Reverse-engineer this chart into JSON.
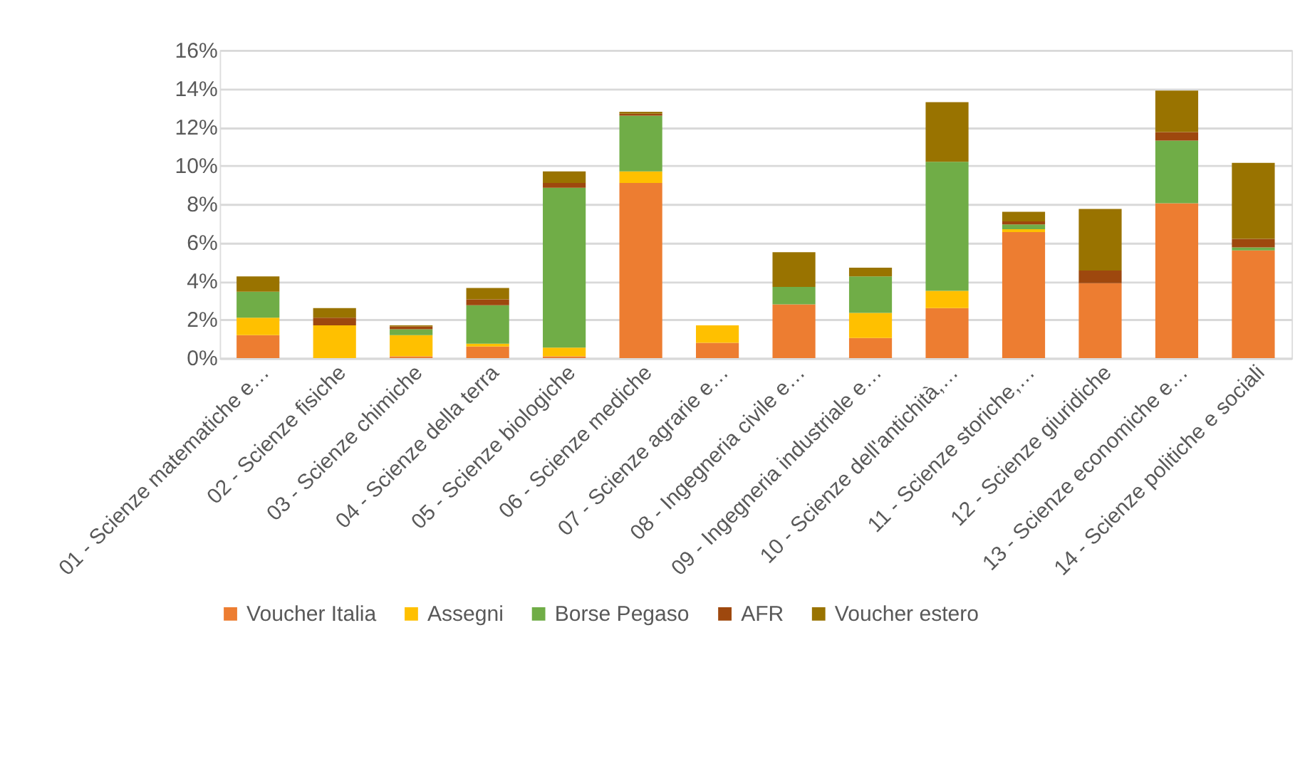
{
  "chart_data": {
    "type": "bar",
    "stacked": true,
    "categories": [
      "01 - Scienze matematiche e…",
      "02 - Scienze fisiche",
      "03 - Scienze chimiche",
      "04 - Scienze della terra",
      "05 - Scienze biologiche",
      "06 - Scienze mediche",
      "07 - Scienze agrarie e…",
      "08 - Ingegneria civile e…",
      "09 - Ingegneria industriale e…",
      "10 - Scienze dell'antichità,…",
      "11 - Scienze storiche,…",
      "12 - Scienze giuridiche",
      "13 - Scienze economiche e…",
      "14 - Scienze politiche e sociali"
    ],
    "series": [
      {
        "name": "Voucher Italia",
        "color": "#ed7d31",
        "values": [
          1.2,
          0,
          0.1,
          0.6,
          0.1,
          9.1,
          0.8,
          2.8,
          1.05,
          2.6,
          6.55,
          3.9,
          8.05,
          5.6
        ]
      },
      {
        "name": "Assegni",
        "color": "#ffc000",
        "values": [
          0.9,
          1.7,
          1.1,
          0.15,
          0.45,
          0.6,
          0.9,
          0,
          1.3,
          0.9,
          0.15,
          0,
          0,
          0
        ]
      },
      {
        "name": "Borse Pegaso",
        "color": "#70ad47",
        "values": [
          1.35,
          0,
          0.3,
          2.0,
          8.3,
          2.9,
          0,
          0.9,
          1.9,
          6.7,
          0.25,
          0,
          3.25,
          0.15
        ]
      },
      {
        "name": "AFR",
        "color": "#9e480e",
        "values": [
          0,
          0.4,
          0.15,
          0.3,
          0.25,
          0.1,
          0,
          0,
          0,
          0,
          0.15,
          0.65,
          0.45,
          0.45
        ]
      },
      {
        "name": "Voucher estero",
        "color": "#997300",
        "values": [
          0.8,
          0.5,
          0.05,
          0.6,
          0.6,
          0.1,
          0,
          1.8,
          0.45,
          3.1,
          0.5,
          3.2,
          2.15,
          3.95
        ]
      }
    ],
    "ylim": [
      0,
      16
    ],
    "yticks": [
      {
        "value": 0,
        "label": "0%"
      },
      {
        "value": 2,
        "label": "2%"
      },
      {
        "value": 4,
        "label": "4%"
      },
      {
        "value": 6,
        "label": "6%"
      },
      {
        "value": 8,
        "label": "8%"
      },
      {
        "value": 10,
        "label": "10%"
      },
      {
        "value": 12,
        "label": "12%"
      },
      {
        "value": 14,
        "label": "14%"
      },
      {
        "value": 16,
        "label": "16%"
      }
    ],
    "grid": "y",
    "legend": "bottom"
  }
}
